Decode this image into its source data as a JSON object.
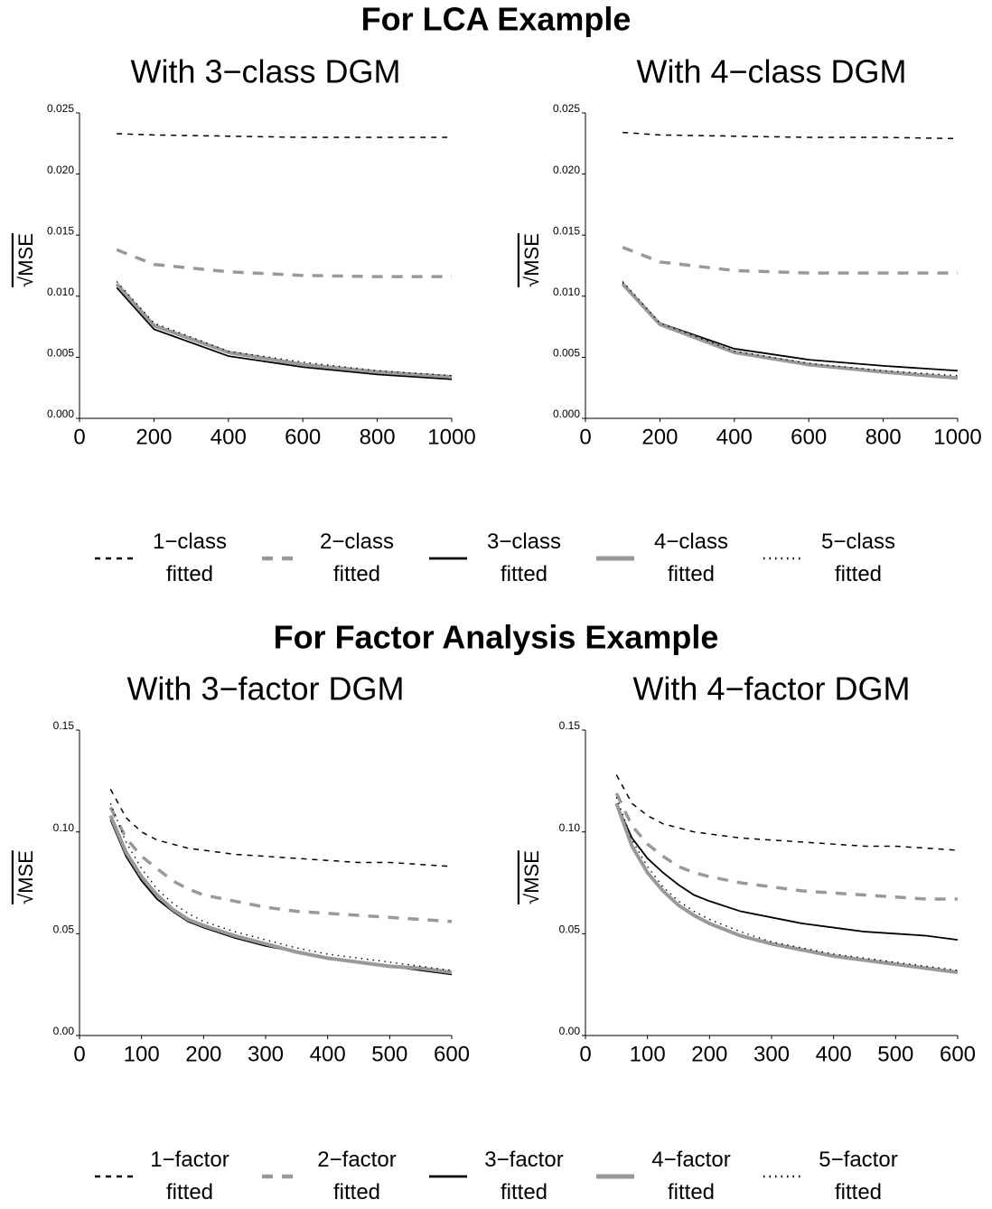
{
  "sections": [
    {
      "title": "For LCA Example"
    },
    {
      "title": "For Factor Analysis Example"
    }
  ],
  "chart_data": [
    {
      "type": "line",
      "title": "With 3−class DGM",
      "ylabel": "√MSE",
      "x": [
        100,
        200,
        400,
        600,
        800,
        1000
      ],
      "xlim": [
        0,
        1000
      ],
      "xticks": [
        0,
        200,
        400,
        600,
        800,
        1000
      ],
      "ylim": [
        0,
        0.025
      ],
      "yticks": [
        {
          "value": 0,
          "label": "0.000"
        },
        0.005,
        {
          "value": 0.01,
          "label": "0.010"
        },
        0.015,
        {
          "value": 0.02,
          "label": "0.020"
        },
        0.025
      ],
      "series": [
        {
          "name": "1−class fitted",
          "color": "#000000",
          "linestyle": "dashed",
          "values": [
            0.0233,
            0.0232,
            0.0231,
            0.023,
            0.023,
            0.023
          ]
        },
        {
          "name": "2−class fitted",
          "color": "#999999",
          "linestyle": "dashed",
          "values": [
            0.0138,
            0.0126,
            0.012,
            0.0117,
            0.0116,
            0.0116
          ]
        },
        {
          "name": "3−class fitted",
          "color": "#000000",
          "linestyle": "solid",
          "values": [
            0.0107,
            0.0073,
            0.0051,
            0.0042,
            0.0036,
            0.0032
          ]
        },
        {
          "name": "4−class fitted",
          "color": "#999999",
          "linestyle": "solid",
          "values": [
            0.011,
            0.0076,
            0.0054,
            0.0044,
            0.0038,
            0.0034
          ]
        },
        {
          "name": "5−class fitted",
          "color": "#000000",
          "linestyle": "dotted",
          "values": [
            0.0112,
            0.0078,
            0.0055,
            0.0046,
            0.0039,
            0.0035
          ]
        }
      ]
    },
    {
      "type": "line",
      "title": "With 4−class DGM",
      "ylabel": "√MSE",
      "x": [
        100,
        200,
        400,
        600,
        800,
        1000
      ],
      "xlim": [
        0,
        1000
      ],
      "xticks": [
        0,
        200,
        400,
        600,
        800,
        1000
      ],
      "ylim": [
        0,
        0.025
      ],
      "yticks": [
        {
          "value": 0,
          "label": "0.000"
        },
        0.005,
        {
          "value": 0.01,
          "label": "0.010"
        },
        0.015,
        {
          "value": 0.02,
          "label": "0.020"
        },
        0.025
      ],
      "series": [
        {
          "color": "#000000",
          "linestyle": "dashed",
          "values": [
            0.0234,
            0.0232,
            0.0231,
            0.023,
            0.023,
            0.0229
          ]
        },
        {
          "color": "#999999",
          "linestyle": "dashed",
          "values": [
            0.014,
            0.0128,
            0.0121,
            0.0119,
            0.0119,
            0.0119
          ]
        },
        {
          "color": "#000000",
          "linestyle": "solid",
          "values": [
            0.0111,
            0.0078,
            0.0057,
            0.0048,
            0.0043,
            0.0039
          ]
        },
        {
          "color": "#999999",
          "linestyle": "solid",
          "values": [
            0.011,
            0.0077,
            0.0054,
            0.0044,
            0.0038,
            0.0033
          ]
        },
        {
          "color": "#000000",
          "linestyle": "dotted",
          "values": [
            0.0112,
            0.0078,
            0.0055,
            0.0045,
            0.0039,
            0.0035
          ]
        }
      ]
    },
    {
      "type": "line",
      "title": "With 3−factor DGM",
      "ylabel": "√MSE",
      "x": [
        50,
        75,
        100,
        125,
        150,
        175,
        200,
        250,
        300,
        350,
        400,
        450,
        500,
        550,
        600
      ],
      "xlim": [
        0,
        600
      ],
      "xticks": [
        0,
        100,
        200,
        300,
        400,
        500,
        600
      ],
      "ylim": [
        0,
        0.15
      ],
      "yticks": [
        {
          "value": 0,
          "label": "0.00"
        },
        0.05,
        {
          "value": 0.1,
          "label": "0.10"
        },
        0.15
      ],
      "series": [
        {
          "name": "1−factor fitted",
          "color": "#000000",
          "linestyle": "dashed",
          "values": [
            0.121,
            0.107,
            0.1,
            0.096,
            0.094,
            0.092,
            0.091,
            0.089,
            0.088,
            0.087,
            0.086,
            0.085,
            0.085,
            0.084,
            0.083
          ]
        },
        {
          "name": "2−factor fitted",
          "color": "#999999",
          "linestyle": "dashed",
          "values": [
            0.112,
            0.097,
            0.088,
            0.082,
            0.076,
            0.072,
            0.069,
            0.066,
            0.063,
            0.061,
            0.06,
            0.059,
            0.058,
            0.057,
            0.056
          ]
        },
        {
          "name": "3−factor fitted",
          "color": "#000000",
          "linestyle": "solid",
          "values": [
            0.106,
            0.088,
            0.076,
            0.067,
            0.061,
            0.056,
            0.053,
            0.048,
            0.044,
            0.041,
            0.038,
            0.036,
            0.034,
            0.032,
            0.03
          ]
        },
        {
          "name": "4−factor fitted",
          "color": "#999999",
          "linestyle": "solid",
          "values": [
            0.108,
            0.09,
            0.078,
            0.069,
            0.062,
            0.057,
            0.054,
            0.049,
            0.045,
            0.041,
            0.038,
            0.036,
            0.034,
            0.033,
            0.031
          ]
        },
        {
          "name": "5−factor fitted",
          "color": "#000000",
          "linestyle": "dotted",
          "values": [
            0.114,
            0.095,
            0.082,
            0.072,
            0.065,
            0.06,
            0.056,
            0.051,
            0.047,
            0.043,
            0.04,
            0.038,
            0.036,
            0.034,
            0.032
          ]
        }
      ]
    },
    {
      "type": "line",
      "title": "With 4−factor DGM",
      "ylabel": "√MSE",
      "x": [
        50,
        75,
        100,
        125,
        150,
        175,
        200,
        250,
        300,
        350,
        400,
        450,
        500,
        550,
        600
      ],
      "xlim": [
        0,
        600
      ],
      "xticks": [
        0,
        100,
        200,
        300,
        400,
        500,
        600
      ],
      "ylim": [
        0,
        0.15
      ],
      "yticks": [
        {
          "value": 0,
          "label": "0.00"
        },
        0.05,
        {
          "value": 0.1,
          "label": "0.10"
        },
        0.15
      ],
      "series": [
        {
          "color": "#000000",
          "linestyle": "dashed",
          "values": [
            0.128,
            0.114,
            0.108,
            0.104,
            0.102,
            0.1,
            0.099,
            0.097,
            0.096,
            0.095,
            0.094,
            0.093,
            0.093,
            0.092,
            0.091
          ]
        },
        {
          "color": "#999999",
          "linestyle": "dashed",
          "values": [
            0.119,
            0.103,
            0.094,
            0.088,
            0.083,
            0.08,
            0.078,
            0.075,
            0.073,
            0.071,
            0.07,
            0.069,
            0.068,
            0.067,
            0.067
          ]
        },
        {
          "color": "#000000",
          "linestyle": "solid",
          "values": [
            0.114,
            0.097,
            0.087,
            0.08,
            0.074,
            0.069,
            0.066,
            0.061,
            0.058,
            0.055,
            0.053,
            0.051,
            0.05,
            0.049,
            0.047
          ]
        },
        {
          "color": "#999999",
          "linestyle": "solid",
          "values": [
            0.114,
            0.093,
            0.08,
            0.071,
            0.064,
            0.059,
            0.055,
            0.049,
            0.045,
            0.042,
            0.039,
            0.037,
            0.035,
            0.033,
            0.031
          ]
        },
        {
          "color": "#000000",
          "linestyle": "dotted",
          "values": [
            0.117,
            0.096,
            0.083,
            0.073,
            0.066,
            0.061,
            0.057,
            0.051,
            0.046,
            0.043,
            0.04,
            0.038,
            0.036,
            0.034,
            0.032
          ]
        }
      ]
    }
  ]
}
